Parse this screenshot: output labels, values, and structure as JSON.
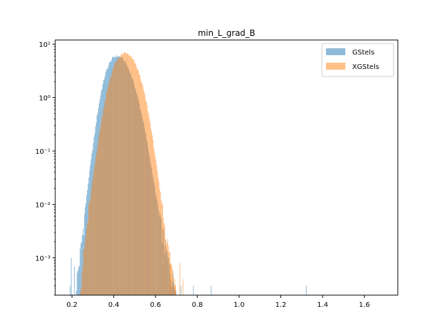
{
  "chart_data": {
    "type": "histogram",
    "title": "min_L_grad_B",
    "xlabel": "",
    "ylabel": "",
    "x_scale": "linear",
    "y_scale": "log",
    "xlim": [
      0.12,
      1.76
    ],
    "ylim": [
      0.0002,
      12
    ],
    "x_ticks": [
      0.2,
      0.4,
      0.6,
      0.8,
      1.0,
      1.2,
      1.4,
      1.6
    ],
    "x_tick_labels": [
      "0.2",
      "0.4",
      "0.6",
      "0.8",
      "1.0",
      "1.2",
      "1.4",
      "1.6"
    ],
    "y_ticks": [
      0.001,
      0.01,
      0.1,
      1,
      10
    ],
    "y_tick_labels": [
      "10⁻³",
      "10⁻²",
      "10⁻¹",
      "10⁰",
      "10¹"
    ],
    "legend_position": "top-right",
    "grid": false,
    "series": [
      {
        "name": "GStels",
        "color": "#1f77b4",
        "alpha": 0.5,
        "peak_density": 6.0,
        "peak_x": 0.42,
        "points": [
          [
            0.22,
            0.0003
          ],
          [
            0.24,
            0.0012
          ],
          [
            0.26,
            0.006
          ],
          [
            0.28,
            0.03
          ],
          [
            0.3,
            0.12
          ],
          [
            0.32,
            0.45
          ],
          [
            0.34,
            1.3
          ],
          [
            0.36,
            2.8
          ],
          [
            0.38,
            4.5
          ],
          [
            0.4,
            5.8
          ],
          [
            0.42,
            6.0
          ],
          [
            0.44,
            5.5
          ],
          [
            0.46,
            4.3
          ],
          [
            0.48,
            2.9
          ],
          [
            0.5,
            1.7
          ],
          [
            0.52,
            0.85
          ],
          [
            0.54,
            0.38
          ],
          [
            0.56,
            0.15
          ],
          [
            0.58,
            0.05
          ],
          [
            0.6,
            0.017
          ],
          [
            0.62,
            0.0055
          ],
          [
            0.64,
            0.0022
          ],
          [
            0.66,
            0.0009
          ],
          [
            0.68,
            0.0004
          ],
          [
            0.7,
            0.0003
          ]
        ],
        "outliers": [
          [
            0.19,
            0.0003
          ],
          [
            0.195,
            0.001
          ],
          [
            0.21,
            0.0007
          ],
          [
            0.72,
            0.0003
          ],
          [
            0.78,
            0.0003
          ],
          [
            0.865,
            0.0003
          ],
          [
            1.32,
            0.0003
          ]
        ]
      },
      {
        "name": "XGStels",
        "color": "#ff7f0e",
        "alpha": 0.5,
        "peak_density": 6.8,
        "peak_x": 0.45,
        "points": [
          [
            0.24,
            0.0003
          ],
          [
            0.26,
            0.0015
          ],
          [
            0.28,
            0.007
          ],
          [
            0.3,
            0.03
          ],
          [
            0.32,
            0.11
          ],
          [
            0.34,
            0.35
          ],
          [
            0.36,
            0.95
          ],
          [
            0.38,
            2.1
          ],
          [
            0.4,
            3.8
          ],
          [
            0.42,
            5.4
          ],
          [
            0.44,
            6.5
          ],
          [
            0.46,
            6.8
          ],
          [
            0.48,
            6.0
          ],
          [
            0.5,
            4.6
          ],
          [
            0.52,
            3.0
          ],
          [
            0.54,
            1.6
          ],
          [
            0.56,
            0.7
          ],
          [
            0.58,
            0.25
          ],
          [
            0.6,
            0.075
          ],
          [
            0.62,
            0.02
          ],
          [
            0.64,
            0.0055
          ],
          [
            0.66,
            0.0016
          ],
          [
            0.68,
            0.0006
          ],
          [
            0.7,
            0.0003
          ]
        ],
        "outliers": [
          [
            0.67,
            0.0008
          ],
          [
            0.69,
            0.0004
          ],
          [
            0.715,
            0.0008
          ],
          [
            0.73,
            0.0004
          ]
        ]
      }
    ]
  }
}
